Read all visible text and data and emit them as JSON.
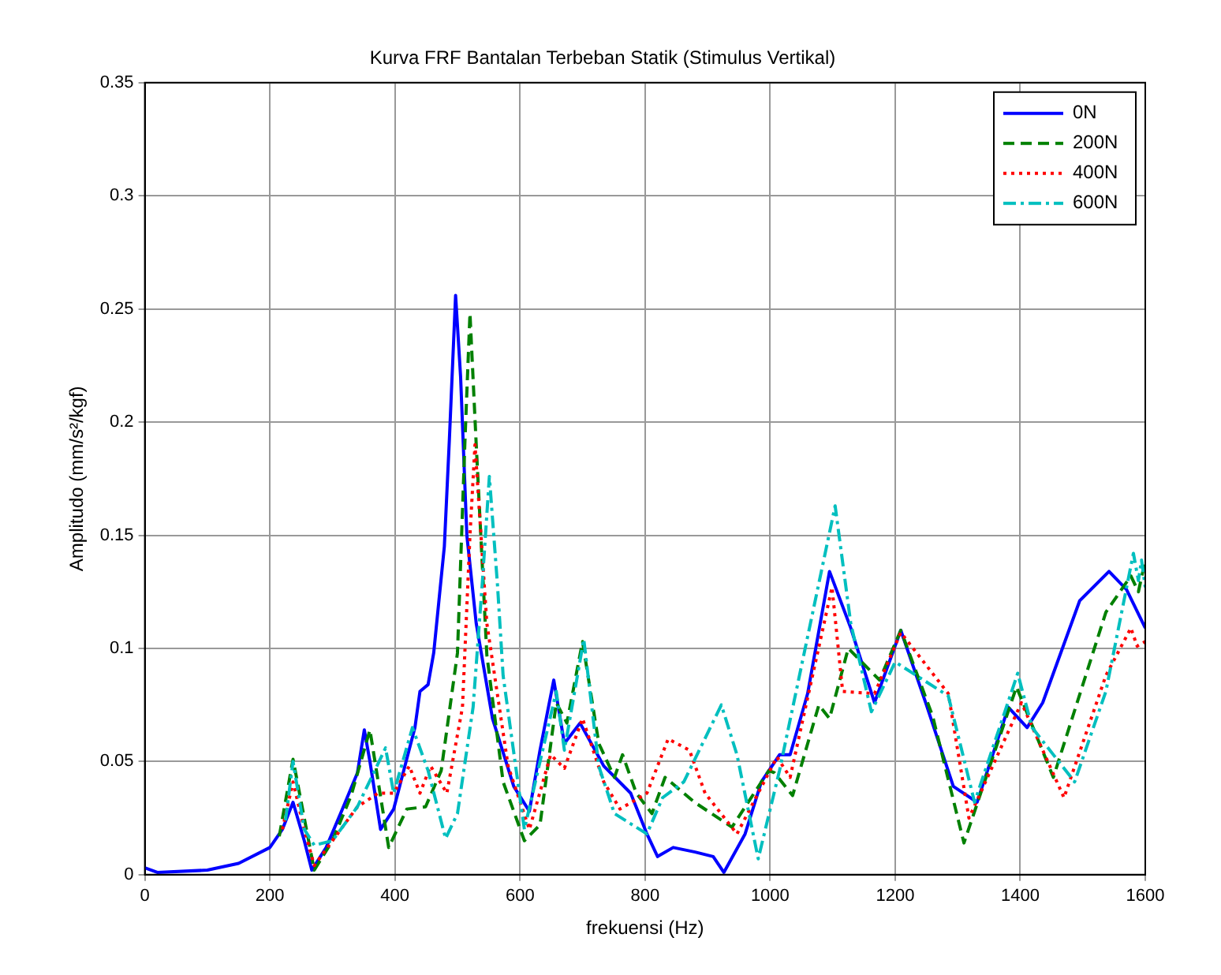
{
  "chart_data": {
    "type": "line",
    "title": "Kurva FRF Bantalan Terbeban Statik (Stimulus Vertikal)",
    "xlabel": "frekuensi (Hz)",
    "ylabel": "Amplitudo (mm/s²/kgf)",
    "xlim": [
      0,
      1600
    ],
    "xticks": [
      0,
      200,
      400,
      600,
      800,
      1000,
      1200,
      1400,
      1600
    ],
    "ylim": [
      0,
      0.35
    ],
    "yticks": [
      0,
      0.05,
      0.1,
      0.15,
      0.2,
      0.25,
      0.3,
      0.35
    ],
    "grid": true,
    "legend": "top right",
    "series": [
      {
        "name": "0N",
        "color": "#0000ff",
        "line_style": "solid",
        "x": [
          0,
          20,
          100,
          150,
          200,
          220,
          237,
          255,
          267,
          290,
          313,
          340,
          351,
          360,
          377,
          398,
          432,
          440,
          453,
          462,
          479,
          487,
          497,
          505,
          515,
          530,
          556,
          590,
          615,
          632,
          654,
          671,
          696,
          734,
          777,
          803,
          820,
          845,
          880,
          909,
          926,
          960,
          986,
          1015,
          1032,
          1060,
          1095,
          1129,
          1167,
          1209,
          1250,
          1293,
          1331,
          1381,
          1411,
          1436,
          1495,
          1542,
          1570,
          1600
        ],
        "values": [
          0.003,
          0.001,
          0.002,
          0.005,
          0.012,
          0.02,
          0.032,
          0.015,
          0.002,
          0.012,
          0.027,
          0.045,
          0.064,
          0.05,
          0.02,
          0.029,
          0.065,
          0.081,
          0.084,
          0.098,
          0.145,
          0.192,
          0.256,
          0.22,
          0.15,
          0.111,
          0.069,
          0.039,
          0.028,
          0.055,
          0.086,
          0.058,
          0.067,
          0.048,
          0.036,
          0.018,
          0.008,
          0.012,
          0.01,
          0.008,
          0.001,
          0.018,
          0.041,
          0.053,
          0.053,
          0.08,
          0.134,
          0.109,
          0.076,
          0.108,
          0.075,
          0.039,
          0.032,
          0.074,
          0.065,
          0.076,
          0.121,
          0.134,
          0.126,
          0.109
        ]
      },
      {
        "name": "200N",
        "color": "#008000",
        "line_style": "dashed",
        "x": [
          215,
          237,
          255,
          271,
          300,
          330,
          360,
          390,
          419,
          449,
          474,
          500,
          512,
          520,
          530,
          547,
          573,
          607,
          632,
          658,
          675,
          700,
          726,
          751,
          764,
          786,
          811,
          832,
          879,
          939,
          998,
          1007,
          1036,
          1078,
          1095,
          1125,
          1175,
          1209,
          1260,
          1310,
          1394,
          1453,
          1537,
          1577,
          1589,
          1600
        ],
        "values": [
          0.017,
          0.051,
          0.025,
          0.002,
          0.015,
          0.035,
          0.064,
          0.012,
          0.029,
          0.03,
          0.046,
          0.098,
          0.192,
          0.248,
          0.19,
          0.097,
          0.041,
          0.015,
          0.022,
          0.076,
          0.067,
          0.103,
          0.058,
          0.043,
          0.053,
          0.036,
          0.027,
          0.043,
          0.032,
          0.021,
          0.046,
          0.045,
          0.035,
          0.075,
          0.069,
          0.1,
          0.086,
          0.108,
          0.07,
          0.014,
          0.083,
          0.043,
          0.116,
          0.132,
          0.125,
          0.139
        ]
      },
      {
        "name": "400N",
        "color": "#ff0000",
        "line_style": "dotted",
        "x": [
          220,
          237,
          255,
          271,
          300,
          340,
          373,
          398,
          423,
          440,
          457,
          483,
          508,
          520,
          528,
          540,
          547,
          581,
          615,
          649,
          671,
          700,
          734,
          760,
          803,
          837,
          871,
          896,
          947,
          1011,
          1032,
          1099,
          1116,
          1167,
          1209,
          1285,
          1318,
          1402,
          1470,
          1537,
          1577,
          1587,
          1600
        ],
        "values": [
          0.02,
          0.041,
          0.02,
          0.004,
          0.015,
          0.03,
          0.036,
          0.036,
          0.048,
          0.036,
          0.048,
          0.036,
          0.074,
          0.15,
          0.19,
          0.14,
          0.111,
          0.048,
          0.02,
          0.053,
          0.047,
          0.069,
          0.041,
          0.029,
          0.036,
          0.06,
          0.055,
          0.036,
          0.018,
          0.052,
          0.043,
          0.127,
          0.081,
          0.08,
          0.107,
          0.08,
          0.025,
          0.076,
          0.034,
          0.088,
          0.109,
          0.101,
          0.103
        ]
      },
      {
        "name": "600N",
        "color": "#00bfbf",
        "line_style": "dashdot",
        "x": [
          225,
          237,
          255,
          271,
          300,
          340,
          385,
          398,
          428,
          453,
          481,
          500,
          525,
          540,
          551,
          564,
          573,
          607,
          658,
          671,
          702,
          726,
          751,
          803,
          828,
          862,
          922,
          947,
          981,
          1015,
          1104,
          1129,
          1162,
          1200,
          1285,
          1327,
          1396,
          1419,
          1487,
          1537,
          1581,
          1589,
          1594,
          1600
        ],
        "values": [
          0.024,
          0.05,
          0.02,
          0.013,
          0.015,
          0.03,
          0.056,
          0.036,
          0.065,
          0.046,
          0.016,
          0.027,
          0.074,
          0.13,
          0.176,
          0.128,
          0.088,
          0.02,
          0.081,
          0.055,
          0.104,
          0.048,
          0.027,
          0.018,
          0.034,
          0.041,
          0.075,
          0.053,
          0.007,
          0.046,
          0.163,
          0.111,
          0.072,
          0.094,
          0.079,
          0.032,
          0.089,
          0.065,
          0.041,
          0.081,
          0.142,
          0.13,
          0.139,
          0.127
        ]
      }
    ]
  }
}
